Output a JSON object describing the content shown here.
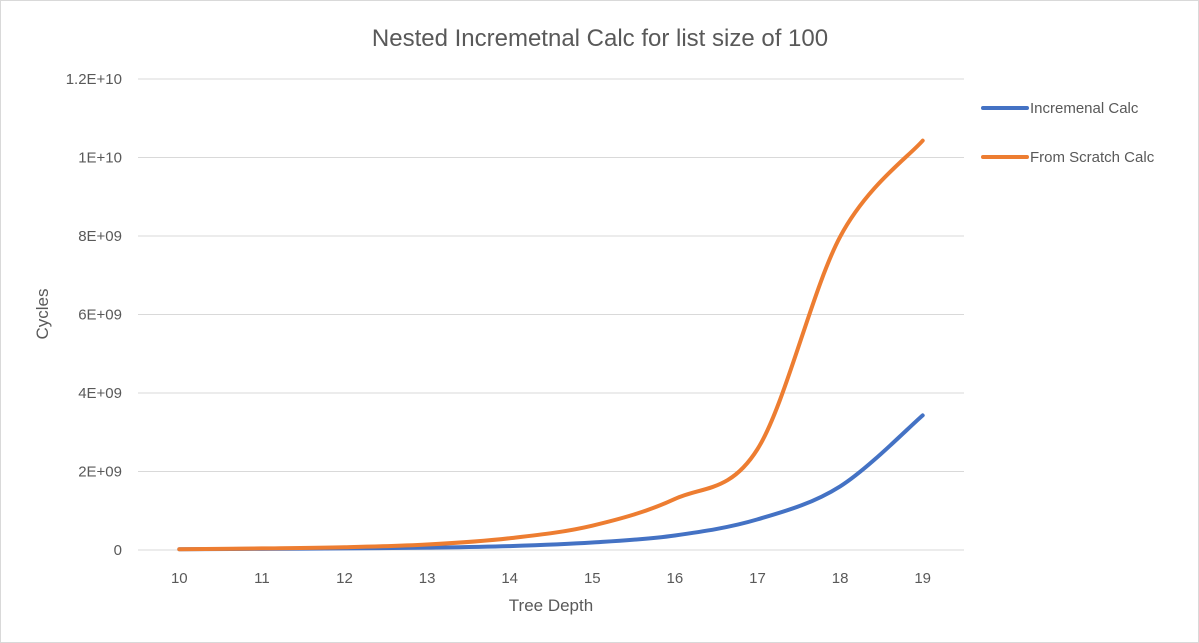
{
  "chart_data": {
    "type": "line",
    "title": "Nested Incremetnal Calc for list size of 100",
    "xlabel": "Tree Depth",
    "ylabel": "Cycles",
    "categories": [
      "10",
      "11",
      "12",
      "13",
      "14",
      "15",
      "16",
      "17",
      "18",
      "19"
    ],
    "ylim": [
      0,
      12000000000
    ],
    "yticks": [
      0,
      2000000000,
      4000000000,
      6000000000,
      8000000000,
      10000000000,
      12000000000
    ],
    "ytick_labels": [
      "0",
      "2E+09",
      "4E+09",
      "6E+09",
      "8E+09",
      "1E+10",
      "1.2E+10"
    ],
    "grid": true,
    "legend_position": "right",
    "series": [
      {
        "name": "Incremenal Calc",
        "color": "#4472c4",
        "values": [
          20000000,
          30000000,
          40000000,
          60000000,
          100000000,
          190000000,
          370000000,
          780000000,
          1620000000,
          3430000000
        ]
      },
      {
        "name": "From Scratch Calc",
        "color": "#ed7d31",
        "values": [
          20000000,
          40000000,
          70000000,
          140000000,
          300000000,
          620000000,
          1300000000,
          2570000000,
          7980000000,
          10430000000
        ]
      }
    ]
  }
}
